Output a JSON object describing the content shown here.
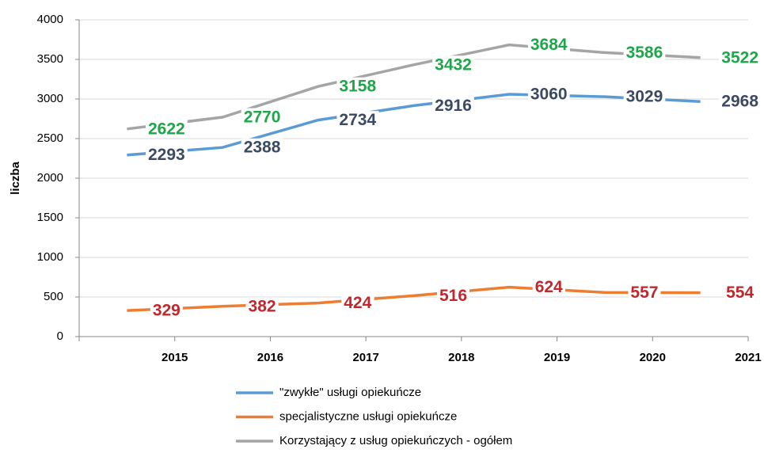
{
  "chart_data": {
    "type": "line",
    "y_axis_label": "liczba",
    "categories": [
      "2015",
      "2016",
      "2017",
      "2018",
      "2019",
      "2020",
      "2021"
    ],
    "series": [
      {
        "name": "\"zwykłe\" usługi opiekuńcze",
        "color": "#5b9bd5",
        "label_color": "#3b4a62",
        "values": [
          2293,
          2388,
          2734,
          2916,
          3060,
          3029,
          2968
        ]
      },
      {
        "name": "specjalistyczne usługi opiekuńcze",
        "color": "#ed7d31",
        "label_color": "#c0282d",
        "values": [
          329,
          382,
          424,
          516,
          624,
          557,
          554
        ]
      },
      {
        "name": "Korzystający z usług opiekuńczych - ogółem",
        "color": "#a5a5a5",
        "label_color": "#1fa64a",
        "values": [
          2622,
          2770,
          3158,
          3432,
          3684,
          3586,
          3522
        ]
      }
    ],
    "ylim": [
      0,
      4000
    ],
    "yticks": [
      0,
      500,
      1000,
      1500,
      2000,
      2500,
      3000,
      3500,
      4000
    ],
    "grid": true
  }
}
